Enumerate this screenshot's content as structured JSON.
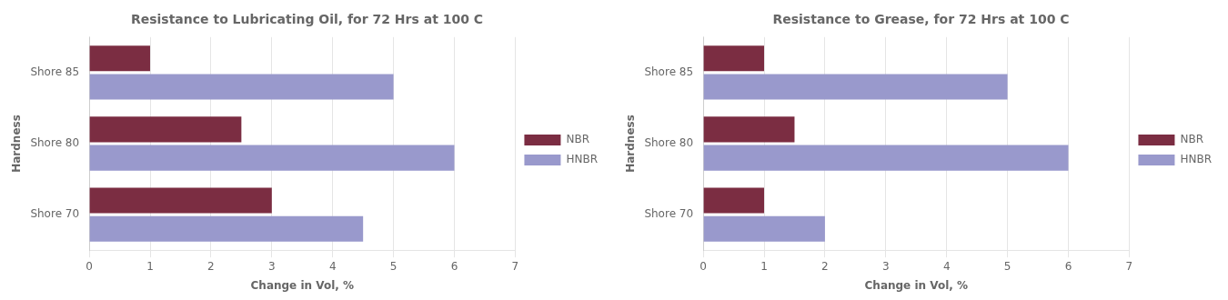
{
  "chart_data": [
    {
      "type": "bar",
      "orientation": "horizontal",
      "title": "Resistance to Lubricating Oil, for 72 Hrs at 100 C",
      "categories": [
        "Shore 85",
        "Shore 80",
        "Shore 70"
      ],
      "series": [
        {
          "name": "NBR",
          "color": "#7B2D42",
          "values": [
            1.0,
            2.5,
            3.0
          ]
        },
        {
          "name": "HNBR",
          "color": "#9999CC",
          "values": [
            5.0,
            6.0,
            4.5
          ]
        }
      ],
      "xlabel": "Change in Vol, %",
      "ylabel": "Hardness",
      "xlim": [
        0,
        7
      ],
      "xticks": [
        0,
        1,
        2,
        3,
        4,
        5,
        6,
        7
      ],
      "grid": true,
      "legend": "right"
    },
    {
      "type": "bar",
      "orientation": "horizontal",
      "title": "Resistance to Grease, for 72 Hrs at 100 C",
      "categories": [
        "Shore 85",
        "Shore 80",
        "Shore 70"
      ],
      "series": [
        {
          "name": "NBR",
          "color": "#7B2D42",
          "values": [
            1.0,
            1.5,
            1.0
          ]
        },
        {
          "name": "HNBR",
          "color": "#9999CC",
          "values": [
            5.0,
            6.0,
            2.0
          ]
        }
      ],
      "xlabel": "Change in Vol, %",
      "ylabel": "Hardness",
      "xlim": [
        0,
        7
      ],
      "xticks": [
        0,
        1,
        2,
        3,
        4,
        5,
        6,
        7
      ],
      "grid": true,
      "legend": "right"
    }
  ]
}
